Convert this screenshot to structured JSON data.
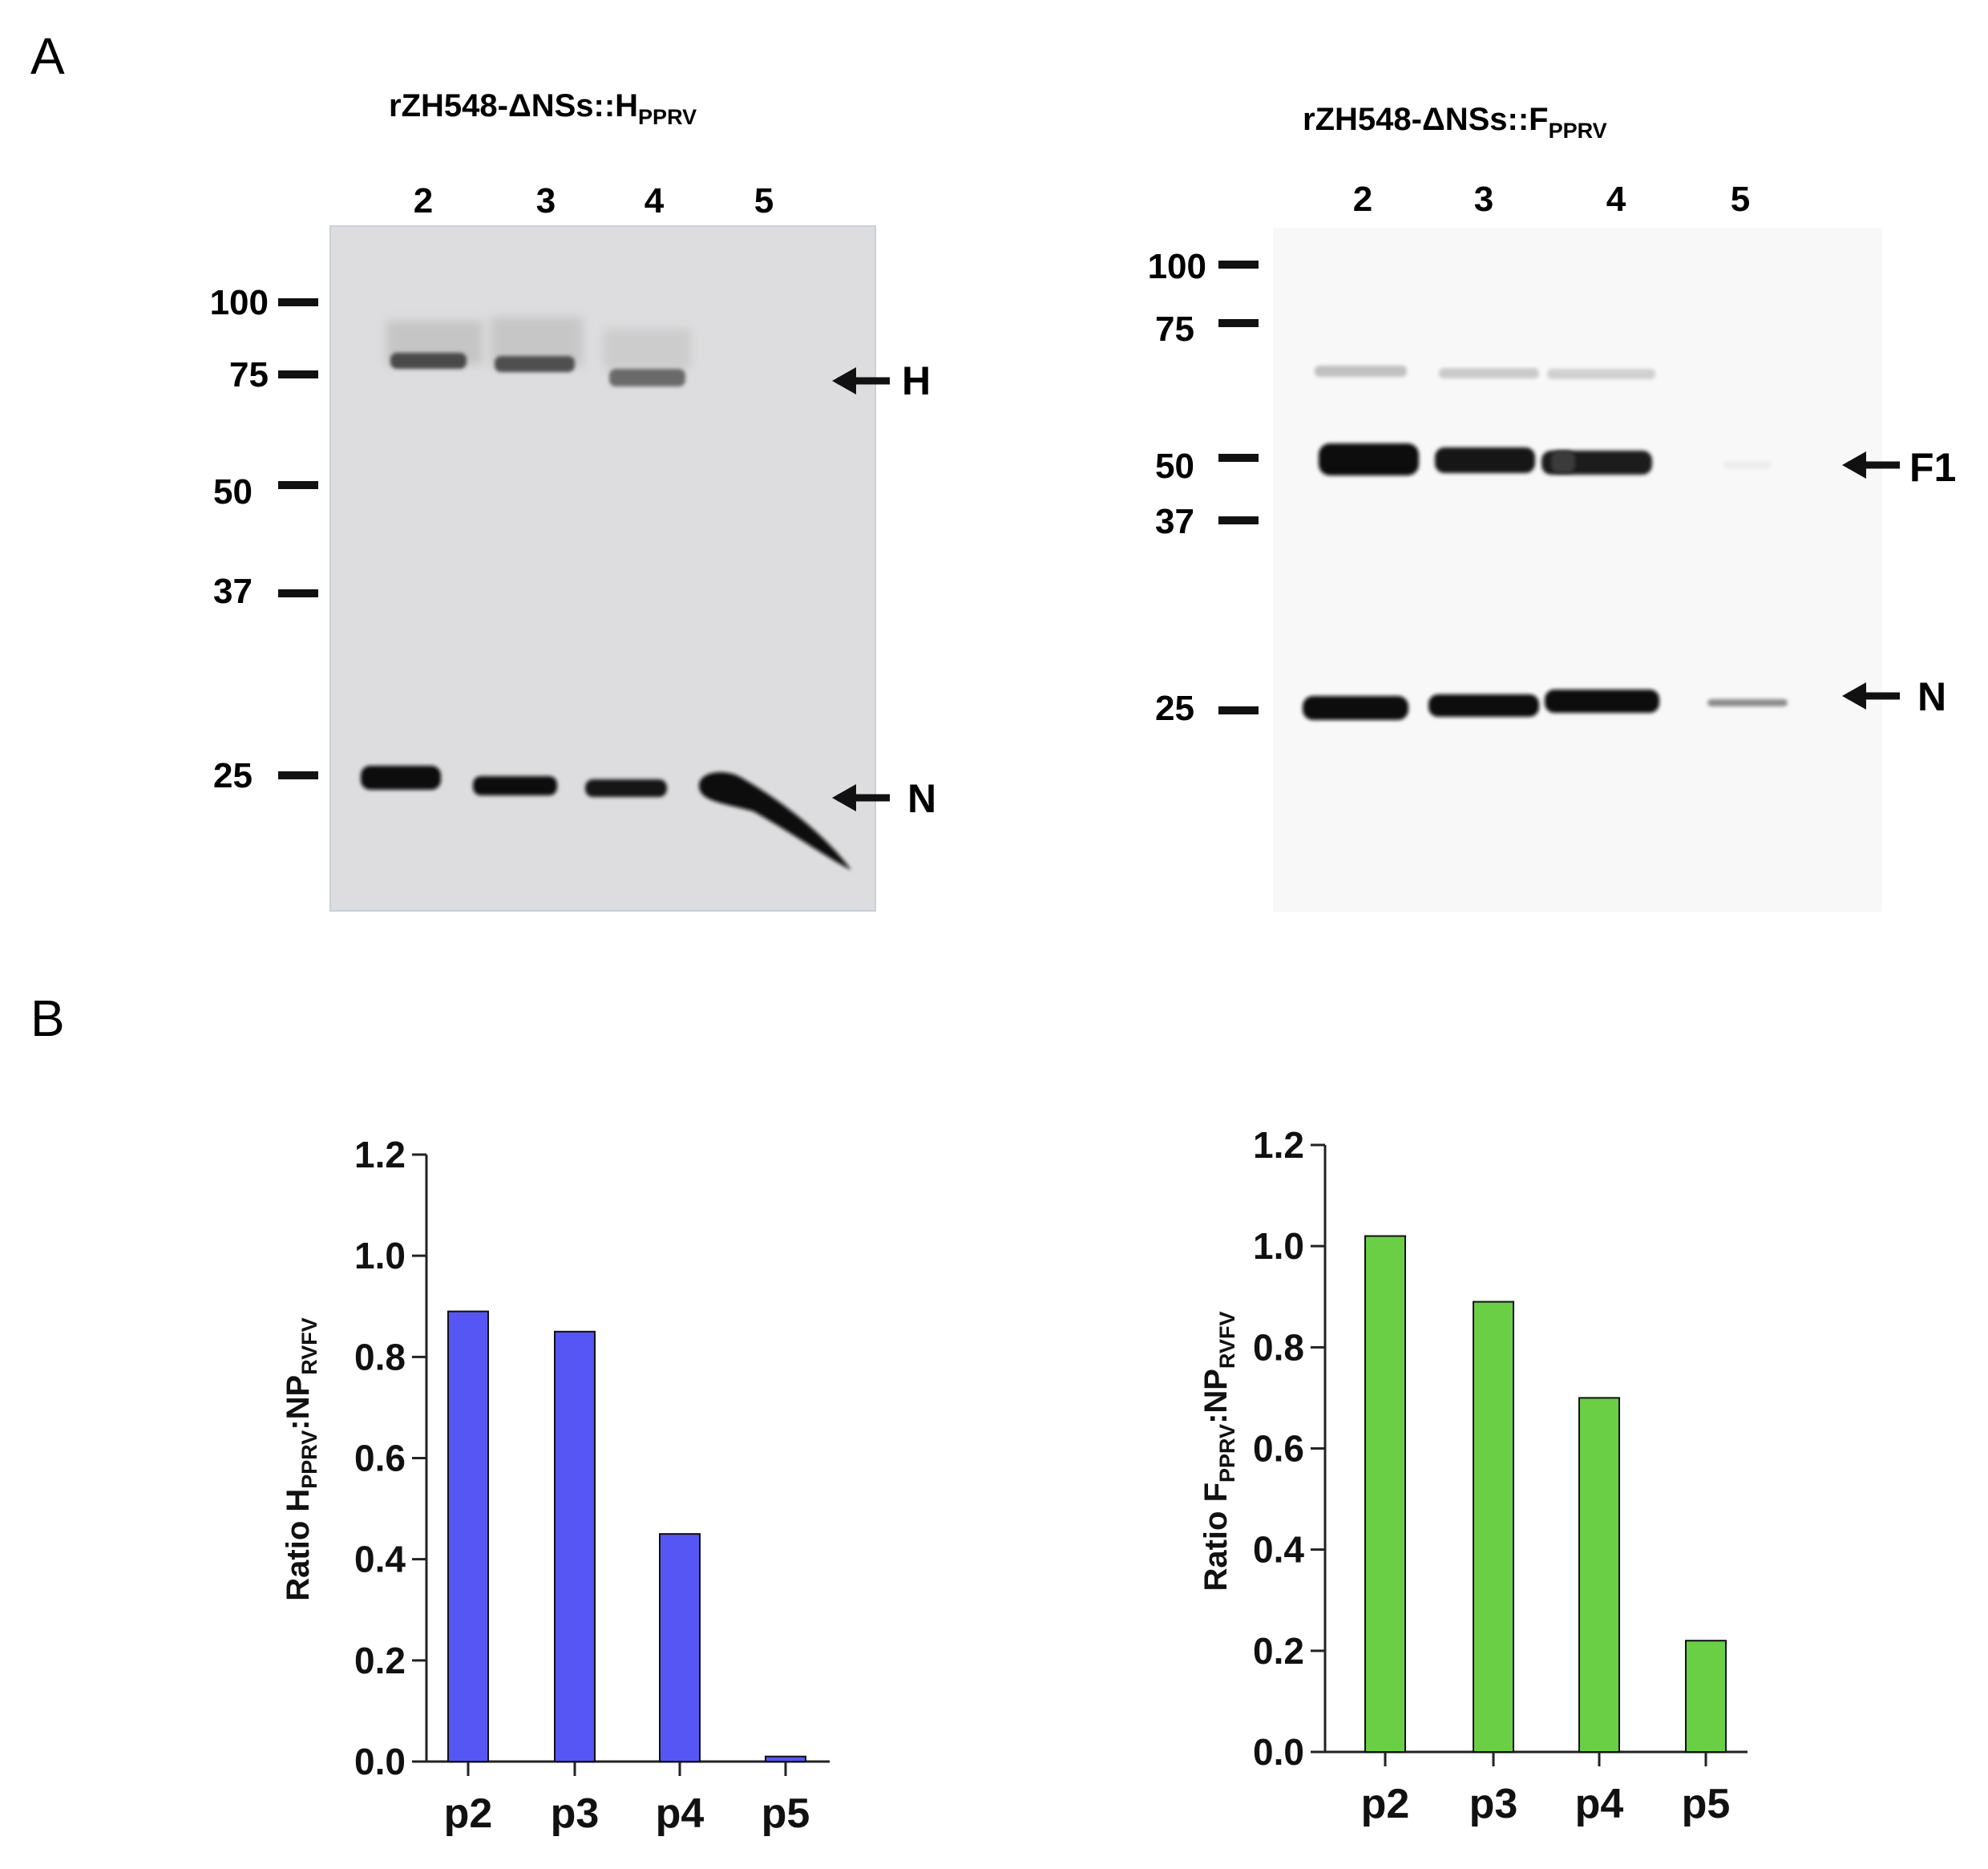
{
  "panels": {
    "a": {
      "letter": "A"
    },
    "b": {
      "letter": "B"
    }
  },
  "blots": [
    {
      "title_main": "rZH548-ΔNSs::H",
      "title_sub": "PPRV",
      "lanes": [
        "2",
        "3",
        "4",
        "5"
      ],
      "markers": [
        "100",
        "75",
        "50",
        "37",
        "25"
      ],
      "bands": [
        {
          "label": "H"
        },
        {
          "label": "N"
        }
      ]
    },
    {
      "title_main": "rZH548-ΔNSs::F",
      "title_sub": "PPRV",
      "lanes": [
        "2",
        "3",
        "4",
        "5"
      ],
      "markers": [
        "100",
        "75",
        "50",
        "37",
        "25"
      ],
      "bands": [
        {
          "label": "F1"
        },
        {
          "label": "N"
        }
      ]
    }
  ],
  "chart_data": [
    {
      "type": "bar",
      "categories": [
        "p2",
        "p3",
        "p4",
        "p5"
      ],
      "values": [
        0.89,
        0.85,
        0.45,
        0.01
      ],
      "ylabel_parts": [
        "Ratio H",
        "PPRV",
        ":NP",
        "RVFV"
      ],
      "ylim": [
        0,
        1.2
      ],
      "yticks": [
        "0.0",
        "0.2",
        "0.4",
        "0.6",
        "0.8",
        "1.0",
        "1.2"
      ],
      "color": "#5656f5"
    },
    {
      "type": "bar",
      "categories": [
        "p2",
        "p3",
        "p4",
        "p5"
      ],
      "values": [
        1.02,
        0.89,
        0.7,
        0.22
      ],
      "ylabel_parts": [
        "Ratio F",
        "PPRV",
        ":NP",
        "RVFV"
      ],
      "ylim": [
        0,
        1.2
      ],
      "yticks": [
        "0.0",
        "0.2",
        "0.4",
        "0.6",
        "0.8",
        "1.0",
        "1.2"
      ],
      "color": "#6acf45"
    }
  ]
}
